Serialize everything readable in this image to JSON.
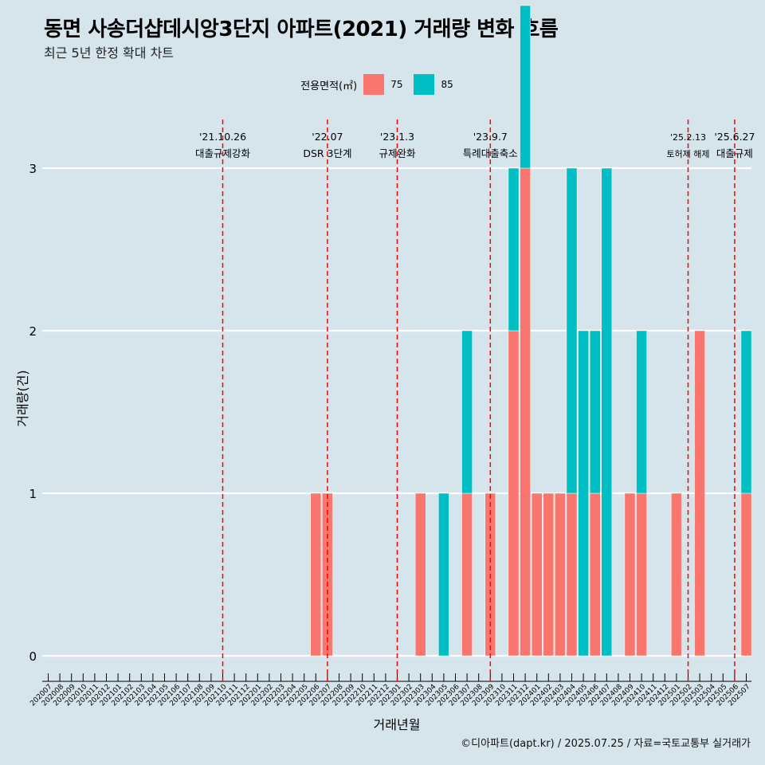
{
  "chart_data": {
    "type": "bar",
    "title": "동면 사송더샵데시앙3단지 아파트(2021) 거래량 변화 흐름",
    "subtitle": "최근 5년 한정 확대 차트",
    "xlabel": "거래년월",
    "ylabel": "거래량(건)",
    "ylim": [
      0,
      3
    ],
    "yticks": [
      0,
      1,
      2,
      3
    ],
    "grid": true,
    "legend": {
      "title": "전용면적(㎡)",
      "position": "top"
    },
    "categories": [
      "202007",
      "202008",
      "202009",
      "202010",
      "202011",
      "202012",
      "202101",
      "202102",
      "202103",
      "202104",
      "202105",
      "202106",
      "202107",
      "202108",
      "202109",
      "202110",
      "202111",
      "202112",
      "202201",
      "202202",
      "202203",
      "202204",
      "202205",
      "202206",
      "202207",
      "202208",
      "202209",
      "202210",
      "202211",
      "202212",
      "202301",
      "202302",
      "202303",
      "202304",
      "202305",
      "202306",
      "202307",
      "202308",
      "202309",
      "202310",
      "202311",
      "202312",
      "202401",
      "202402",
      "202403",
      "202404",
      "202405",
      "202406",
      "202407",
      "202408",
      "202409",
      "202410",
      "202411",
      "202412",
      "202501",
      "202502",
      "202503",
      "202504",
      "202505",
      "202506",
      "202507"
    ],
    "series": [
      {
        "name": "75",
        "color": "#f8766d",
        "values": [
          0,
          0,
          0,
          0,
          0,
          0,
          0,
          0,
          0,
          0,
          0,
          0,
          0,
          0,
          0,
          0,
          0,
          0,
          0,
          0,
          0,
          0,
          0,
          1,
          1,
          0,
          0,
          0,
          0,
          0,
          0,
          0,
          1,
          0,
          0,
          0,
          1,
          0,
          1,
          0,
          2,
          3,
          1,
          1,
          1,
          1,
          0,
          1,
          0,
          0,
          1,
          1,
          0,
          0,
          1,
          0,
          2,
          0,
          0,
          0,
          1
        ]
      },
      {
        "name": "85",
        "color": "#00bfc4",
        "values": [
          0,
          0,
          0,
          0,
          0,
          0,
          0,
          0,
          0,
          0,
          0,
          0,
          0,
          0,
          0,
          0,
          0,
          0,
          0,
          0,
          0,
          0,
          0,
          0,
          0,
          0,
          0,
          0,
          0,
          0,
          0,
          0,
          0,
          0,
          1,
          0,
          1,
          0,
          0,
          0,
          1,
          1,
          0,
          0,
          0,
          2,
          2,
          1,
          3,
          0,
          0,
          1,
          0,
          0,
          0,
          0,
          0,
          0,
          0,
          0,
          1
        ]
      }
    ],
    "events": [
      {
        "category": "202110",
        "date": "'21.10.26",
        "label": "대출규제강화"
      },
      {
        "category": "202207",
        "date": "'22.07",
        "label": "DSR 3단계"
      },
      {
        "category": "202301",
        "date": "'23.1.3",
        "label": "규제완화"
      },
      {
        "category": "202309",
        "date": "'23.9.7",
        "label": "특례대출축소"
      },
      {
        "category": "202502",
        "date": "'25.2.13",
        "label": "토허제 해제"
      },
      {
        "category": "202506",
        "date": "'25.6.27",
        "label": "대출규제"
      }
    ],
    "event_color": "#ff0000"
  },
  "caption": "©디아파트(dapt.kr) / 2025.07.25 / 자료=국토교통부 실거래가"
}
